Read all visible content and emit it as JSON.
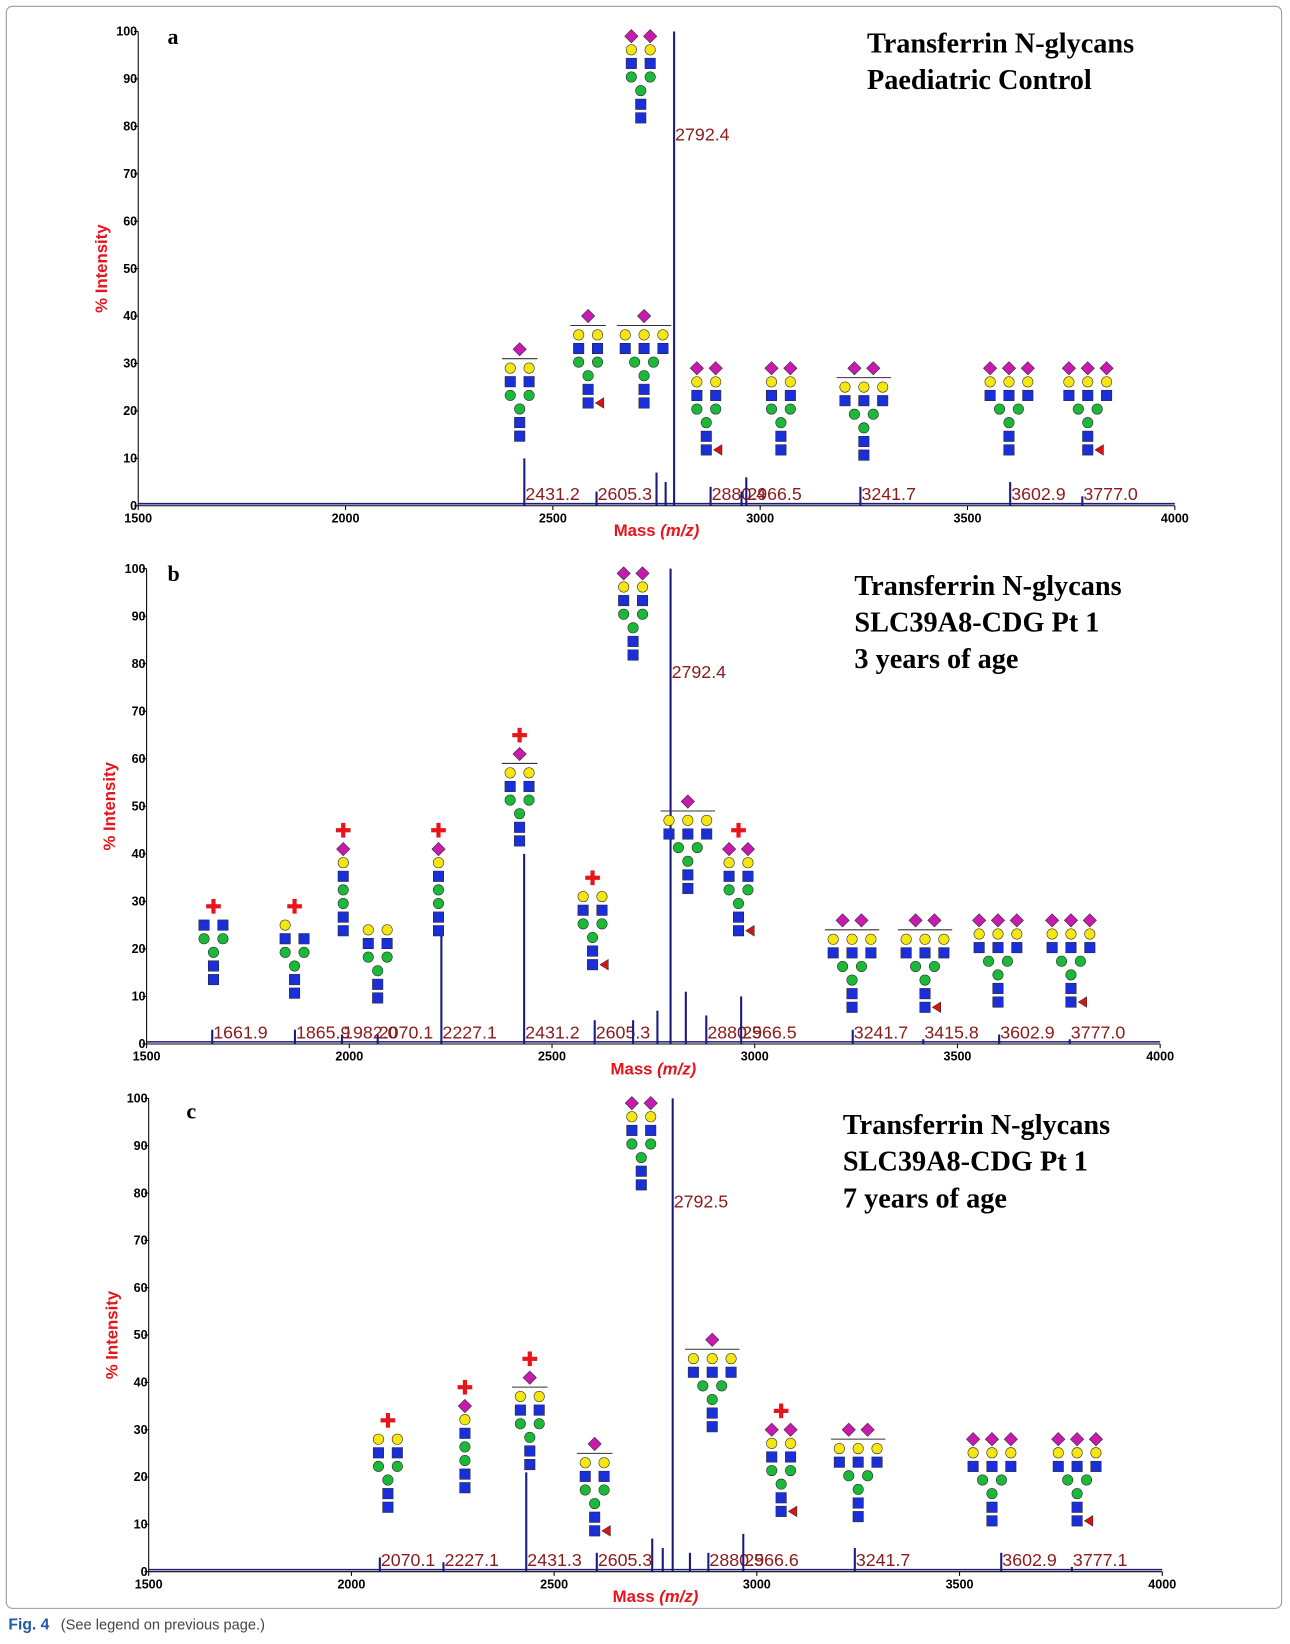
{
  "figure_label": "Fig. 4",
  "figure_note": "(See legend on previous page.)",
  "chart_data": [
    {
      "type": "spectrum",
      "panel": "a",
      "title_lines": [
        "Transferrin N-glycans",
        "Paediatric Control"
      ],
      "ylabel": "% Intensity",
      "xlabel": "Mass",
      "xlabel_unit": "(m/z)",
      "color": "#1a1a80",
      "label_color": "#8b1a1a",
      "axis_label_color": "#e8141b",
      "xlim": [
        1500,
        4000
      ],
      "xticks": [
        1500,
        2000,
        2500,
        3000,
        3500,
        4000
      ],
      "ylim": [
        0,
        100
      ],
      "yticks": [
        0,
        10,
        20,
        30,
        40,
        50,
        60,
        70,
        80,
        90,
        100
      ],
      "x": [
        2431.2,
        2605.3,
        2750,
        2772,
        2792.4,
        2880.4,
        2955,
        2966.5,
        3241.7,
        3602.9,
        3777.0
      ],
      "values": [
        10,
        3,
        7,
        5,
        100,
        4,
        3,
        6,
        4,
        5,
        2
      ],
      "labels": [
        "2431.2",
        "2605.3",
        null,
        null,
        "2792.4",
        "2880.4",
        null,
        "2966.5",
        "3241.7",
        "3602.9",
        "3777.0"
      ]
    },
    {
      "type": "spectrum",
      "panel": "b",
      "title_lines": [
        "Transferrin N-glycans",
        "SLC39A8-CDG Pt 1",
        "3 years of age"
      ],
      "ylabel": "% Intensity",
      "xlabel": "Mass",
      "xlabel_unit": "(m/z)",
      "color": "#1a1a80",
      "label_color": "#8b1a1a",
      "axis_label_color": "#e8141b",
      "xlim": [
        1500,
        4000
      ],
      "xticks": [
        1500,
        2000,
        2500,
        3000,
        3500,
        4000
      ],
      "ylim": [
        0,
        100
      ],
      "yticks": [
        0,
        10,
        20,
        30,
        40,
        50,
        60,
        70,
        80,
        90,
        100
      ],
      "x": [
        1661.9,
        1865.9,
        1982.0,
        2070.1,
        2227.1,
        2431.2,
        2605.3,
        2700,
        2760,
        2792.4,
        2830,
        2880.5,
        2966.5,
        3241.7,
        3415.8,
        3602.9,
        3777.0
      ],
      "values": [
        3,
        3,
        2,
        2,
        23,
        40,
        5,
        5,
        7,
        100,
        11,
        6,
        10,
        3,
        1,
        2,
        1
      ],
      "labels": [
        "1661.9",
        "1865.9",
        "1982.0",
        "2070.1",
        "2227.1",
        "2431.2",
        "2605.3",
        null,
        null,
        "2792.4",
        null,
        "2880.5",
        "2966.5",
        "3241.7",
        "3415.8",
        "3602.9",
        "3777.0"
      ]
    },
    {
      "type": "spectrum",
      "panel": "c",
      "title_lines": [
        "Transferrin N-glycans",
        "SLC39A8-CDG Pt 1",
        "7 years of age"
      ],
      "ylabel": "% Intensity",
      "xlabel": "Mass",
      "xlabel_unit": "(m/z)",
      "color": "#1a1a80",
      "label_color": "#8b1a1a",
      "axis_label_color": "#e8141b",
      "xlim": [
        1500,
        4000
      ],
      "xticks": [
        1500,
        2000,
        2500,
        3000,
        3500,
        4000
      ],
      "ylim": [
        0,
        100
      ],
      "yticks": [
        0,
        10,
        20,
        30,
        40,
        50,
        60,
        70,
        80,
        90,
        100
      ],
      "x": [
        2070.1,
        2227.1,
        2431.3,
        2605.3,
        2742,
        2768,
        2792.5,
        2835,
        2880.5,
        2966.6,
        3241.7,
        3602.9,
        3777.1
      ],
      "values": [
        3,
        2,
        21,
        4,
        7,
        5,
        100,
        4,
        4,
        8,
        5,
        4,
        1
      ],
      "labels": [
        "2070.1",
        "2227.1",
        "2431.3",
        "2605.3",
        null,
        null,
        "2792.5",
        null,
        "2880.5",
        "2966.6",
        "3241.7",
        "3602.9",
        "3777.1"
      ]
    }
  ]
}
